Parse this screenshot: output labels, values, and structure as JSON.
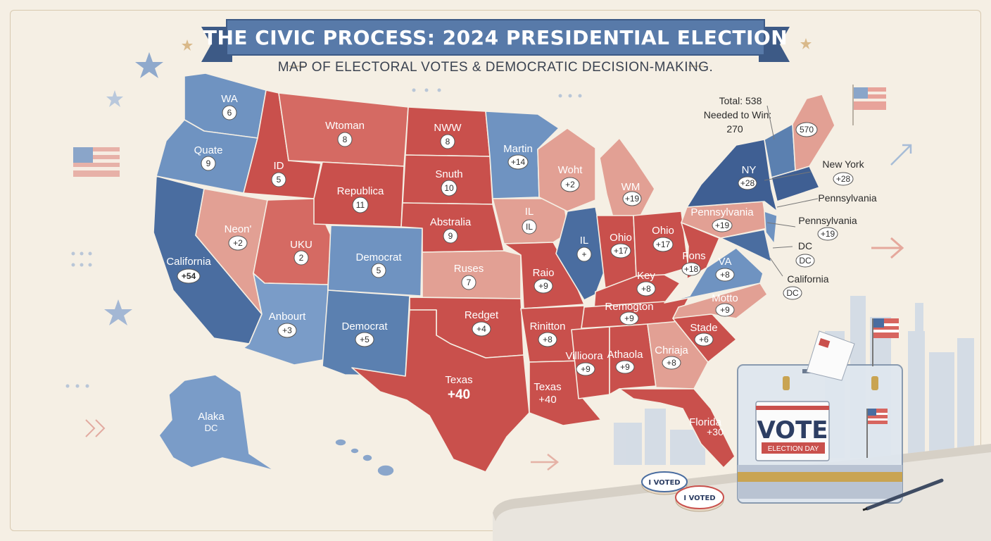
{
  "title": "THE CIVIC PROCESS: 2024 PRESIDENTIAL ELECTION",
  "subtitle": "MAP OF ELECTORAL VOTES & DEMOCRATIC DECISION-MAKING.",
  "colors": {
    "red": "#c9504c",
    "light_red": "#dc8a80",
    "pale_red": "#e4a89c",
    "blue": "#5b80b0",
    "light_blue": "#7a9cc8",
    "dark_blue": "#3f5f93",
    "background": "#f5efe4",
    "banner": "#4f6d9c"
  },
  "states": [
    {
      "label": "WA",
      "votes": "6"
    },
    {
      "label": "Quate",
      "votes": "9"
    },
    {
      "label": "California",
      "votes": "+54"
    },
    {
      "label": "ID",
      "votes": "5"
    },
    {
      "label": "Neon'",
      "votes": "+2"
    },
    {
      "label": "UKU",
      "votes": "2"
    },
    {
      "label": "Anbourt",
      "votes": "+3"
    },
    {
      "label": "Wtoman",
      "votes": "8"
    },
    {
      "label": "Republica",
      "votes": "11"
    },
    {
      "label": "Democrat",
      "votes": "5"
    },
    {
      "label": "Democrat",
      "votes": "+5"
    },
    {
      "label": "NWW",
      "votes": "8"
    },
    {
      "label": "Snuth",
      "votes": "10"
    },
    {
      "label": "Abstralia",
      "votes": "9"
    },
    {
      "label": "Ruses",
      "votes": "7"
    },
    {
      "label": "Redget",
      "votes": "+4"
    },
    {
      "label": "Texas",
      "votes": "+40"
    },
    {
      "label": "Martin",
      "votes": "+14"
    },
    {
      "label": "IL",
      "votes": "IL"
    },
    {
      "label": "Raio",
      "votes": "+9"
    },
    {
      "label": "Rinitton",
      "votes": "+8"
    },
    {
      "label": "Texas",
      "votes": "+40"
    },
    {
      "label": "Woht",
      "votes": "+2"
    },
    {
      "label": "WM",
      "votes": "+19"
    },
    {
      "label": "IL",
      "votes": "+"
    },
    {
      "label": "Ohio",
      "votes": "+17"
    },
    {
      "label": "Ohio",
      "votes": "+17"
    },
    {
      "label": "Key",
      "votes": "+8"
    },
    {
      "label": "Remogton",
      "votes": "+9"
    },
    {
      "label": "Villioora",
      "votes": "+9"
    },
    {
      "label": "Athaola",
      "votes": "+9"
    },
    {
      "label": "Chriaja",
      "votes": "+8"
    },
    {
      "label": "Stade",
      "votes": "+6"
    },
    {
      "label": "Florida",
      "votes": "+30"
    },
    {
      "label": "Fons",
      "votes": "+18"
    },
    {
      "label": "VA",
      "votes": "+8"
    },
    {
      "label": "Motto",
      "votes": "+9"
    },
    {
      "label": "Pennsylvania",
      "votes": "+19"
    },
    {
      "label": "NY",
      "votes": "+28"
    },
    {
      "label": "",
      "votes": "570"
    },
    {
      "label": "Alaka",
      "votes": "DC"
    }
  ],
  "callouts": {
    "total": "Total: 538",
    "needed": "Needed to Win:",
    "needed_value": "270",
    "new_york": "New York",
    "new_york_votes": "+28",
    "pennsylvania_1": "Pennsylvania",
    "pennsylvania_2": "Pennsylvania",
    "pennsylvania_votes": "+19",
    "dc": "DC",
    "dc_badge": "DC",
    "california": "California",
    "california_badge": "DC"
  },
  "ballot_box": {
    "vote": "VOTE",
    "day": "ELECTION DAY"
  },
  "sticker": "I VOTED"
}
